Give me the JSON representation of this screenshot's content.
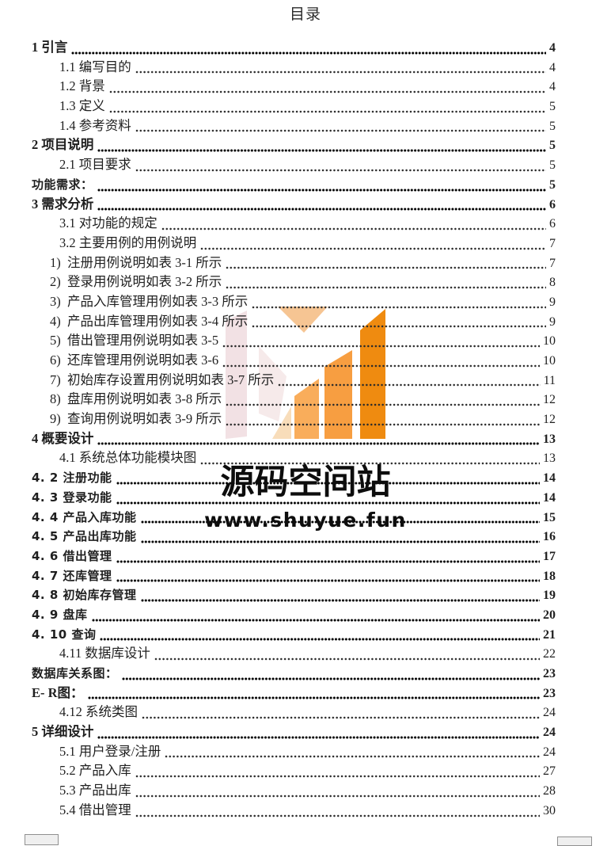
{
  "page": {
    "title": "目录"
  },
  "watermark": {
    "brand": "源码空间站",
    "url": "www.shuyue.fun",
    "logo_colors": {
      "pale_pink": "#f1dee1",
      "pale_pink_light": "#f5e9e9",
      "pale_peach": "#f8ddba",
      "peach": "#f6c593",
      "light_orange": "#f9ad5b",
      "medium_orange": "#f79e41",
      "dark_orange": "#ef8b10"
    }
  },
  "toc": {
    "entries": [
      {
        "label": "1 引言",
        "page": "4",
        "indent": "l1",
        "style": "bold"
      },
      {
        "label": "1.1 编写目的",
        "page": "4",
        "indent": "l2",
        "style": "regular"
      },
      {
        "label": "1.2 背景",
        "page": "4",
        "indent": "l2",
        "style": "regular"
      },
      {
        "label": "1.3 定义",
        "page": "5",
        "indent": "l2",
        "style": "regular"
      },
      {
        "label": "1.4 参考资料",
        "page": "5",
        "indent": "l2",
        "style": "regular"
      },
      {
        "label": "2 项目说明",
        "page": "5",
        "indent": "l1",
        "style": "bold"
      },
      {
        "label": "2.1 项目要求",
        "page": "5",
        "indent": "l2",
        "style": "regular"
      },
      {
        "label": "功能需求：",
        "page": "5",
        "indent": "l1",
        "style": "bold-sans"
      },
      {
        "label": "3 需求分析",
        "page": "6",
        "indent": "l1",
        "style": "bold"
      },
      {
        "label": "3.1 对功能的规定",
        "page": "6",
        "indent": "l2",
        "style": "regular"
      },
      {
        "label": "3.2 主要用例的用例说明",
        "page": "7",
        "indent": "l2",
        "style": "regular"
      },
      {
        "label": "1)  注册用例说明如表 3-1 所示",
        "page": "7",
        "indent": "num",
        "style": "regular"
      },
      {
        "label": "2)  登录用例说明如表 3-2 所示",
        "page": "8",
        "indent": "num",
        "style": "regular"
      },
      {
        "label": "3)  产品入库管理用例如表 3-3 所示",
        "page": "9",
        "indent": "num",
        "style": "regular"
      },
      {
        "label": "4)  产品出库管理用例如表 3-4 所示",
        "page": "9",
        "indent": "num",
        "style": "regular"
      },
      {
        "label": "5)  借出管理用例说明如表 3-5",
        "page": "10",
        "indent": "num",
        "style": "regular"
      },
      {
        "label": "6)  还库管理用例说明如表 3-6",
        "page": "10",
        "indent": "num",
        "style": "regular"
      },
      {
        "label": "7)  初始库存设置用例说明如表 3-7 所示",
        "page": "11",
        "indent": "num",
        "style": "regular"
      },
      {
        "label": "8)  盘库用例说明如表 3-8 所示",
        "page": "12",
        "indent": "num",
        "style": "regular"
      },
      {
        "label": "9)  查询用例说明如表 3-9 所示",
        "page": "12",
        "indent": "num",
        "style": "regular"
      },
      {
        "label": "4 概要设计",
        "page": "13",
        "indent": "l1",
        "style": "bold"
      },
      {
        "label": "4.1 系统总体功能模块图",
        "page": "13",
        "indent": "l2",
        "style": "regular"
      },
      {
        "label": "4. 2 注册功能",
        "page": "14",
        "indent": "l1",
        "style": "bold-sans"
      },
      {
        "label": "4. 3 登录功能",
        "page": "14",
        "indent": "l1",
        "style": "bold-sans"
      },
      {
        "label": "4. 4 产品入库功能",
        "page": "15",
        "indent": "l1",
        "style": "bold-sans"
      },
      {
        "label": "4. 5 产品出库功能",
        "page": "16",
        "indent": "l1",
        "style": "bold-sans"
      },
      {
        "label": "4. 6 借出管理",
        "page": "17",
        "indent": "l1",
        "style": "bold-sans"
      },
      {
        "label": "4. 7 还库管理",
        "page": "18",
        "indent": "l1",
        "style": "bold-sans"
      },
      {
        "label": "4. 8 初始库存管理",
        "page": "19",
        "indent": "l1",
        "style": "bold-sans"
      },
      {
        "label": "4. 9 盘库",
        "page": "20",
        "indent": "l1",
        "style": "bold-sans"
      },
      {
        "label": "4. 10 查询",
        "page": "21",
        "indent": "l1",
        "style": "bold-sans"
      },
      {
        "label": "4.11 数据库设计",
        "page": "22",
        "indent": "l2",
        "style": "regular"
      },
      {
        "label": "数据库关系图：",
        "page": "23",
        "indent": "l1",
        "style": "bold-sans"
      },
      {
        "label": "E- R图：",
        "page": "23",
        "indent": "l1",
        "style": "bold"
      },
      {
        "label": "4.12 系统类图",
        "page": "24",
        "indent": "l2",
        "style": "regular"
      },
      {
        "label": "5 详细设计",
        "page": "24",
        "indent": "l1",
        "style": "bold"
      },
      {
        "label": "5.1 用户登录/注册",
        "page": "24",
        "indent": "l2",
        "style": "regular"
      },
      {
        "label": "5.2 产品入库",
        "page": "27",
        "indent": "l2",
        "style": "regular"
      },
      {
        "label": "5.3 产品出库",
        "page": "28",
        "indent": "l2",
        "style": "regular"
      },
      {
        "label": "5.4 借出管理",
        "page": "30",
        "indent": "l2",
        "style": "regular"
      }
    ]
  }
}
